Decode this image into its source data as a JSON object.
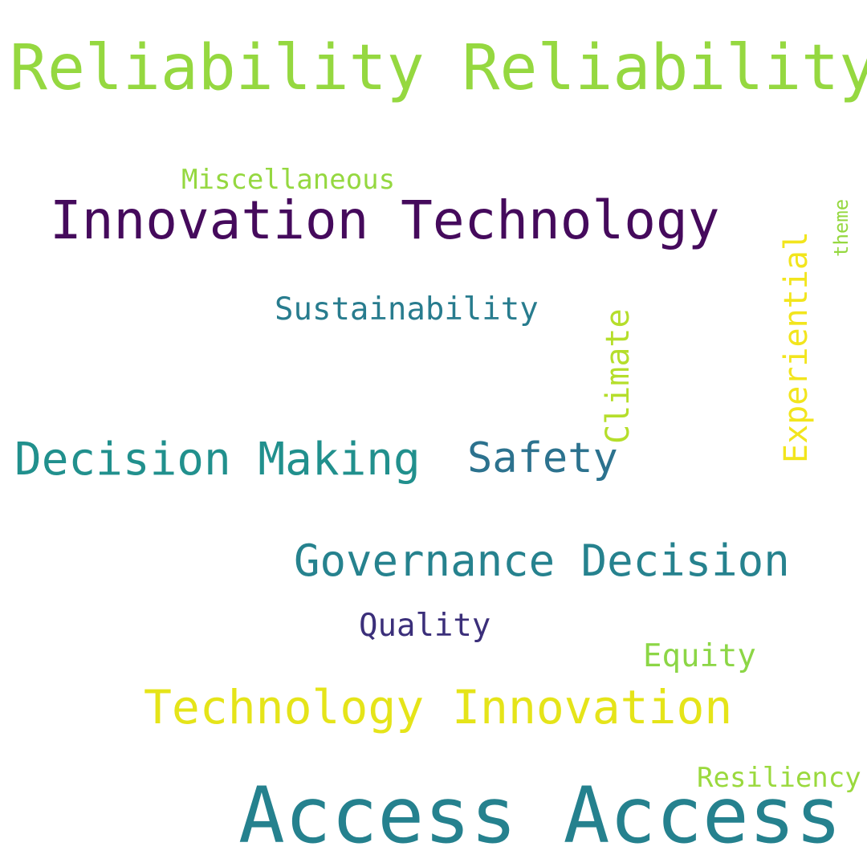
{
  "words": {
    "reliability": {
      "text": "Reliability Reliability",
      "color": "#95d840"
    },
    "miscellaneous": {
      "text": "Miscellaneous",
      "color": "#95d840"
    },
    "innovation_technology": {
      "text": "Innovation Technology",
      "color": "#450a5c"
    },
    "sustainability": {
      "text": "Sustainability",
      "color": "#287c8e"
    },
    "decision_making": {
      "text": "Decision Making",
      "color": "#21908d"
    },
    "safety": {
      "text": "Safety",
      "color": "#2c728e"
    },
    "governance_decision": {
      "text": "Governance Decision",
      "color": "#26828e"
    },
    "quality": {
      "text": "Quality",
      "color": "#3b2f7a"
    },
    "equity": {
      "text": "Equity",
      "color": "#8cd646"
    },
    "technology_innovation": {
      "text": "Technology Innovation",
      "color": "#e5e419"
    },
    "resiliency": {
      "text": "Resiliency",
      "color": "#9ad93d"
    },
    "access": {
      "text": "Access Access",
      "color": "#25818e"
    },
    "climate": {
      "text": "Climate",
      "color": "#b5de2b"
    },
    "experiential": {
      "text": "Experiential",
      "color": "#f2e51d"
    },
    "theme": {
      "text": "theme",
      "color": "#95d840"
    }
  }
}
